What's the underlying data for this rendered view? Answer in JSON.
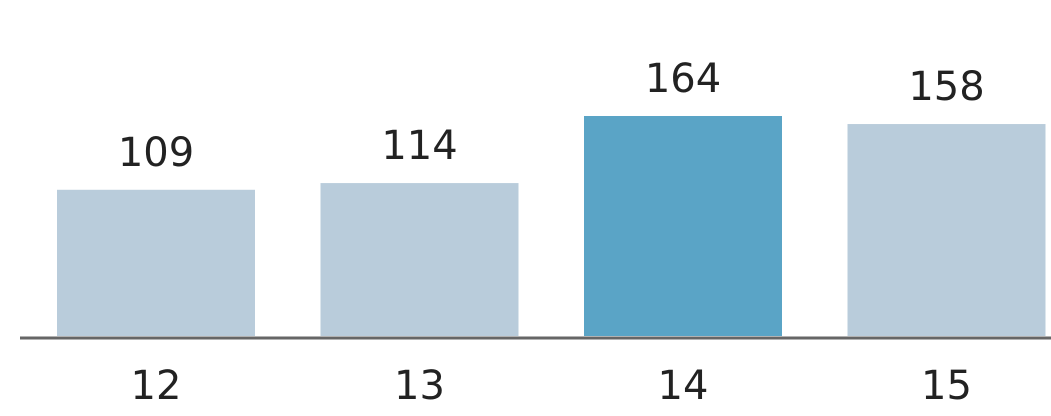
{
  "chart_data": {
    "type": "bar",
    "categories": [
      "12",
      "13",
      "14",
      "15"
    ],
    "values": [
      109,
      114,
      164,
      158
    ],
    "colors": [
      "#b9ccdb",
      "#b9ccdb",
      "#5aa4c6",
      "#b9ccdb"
    ]
  }
}
